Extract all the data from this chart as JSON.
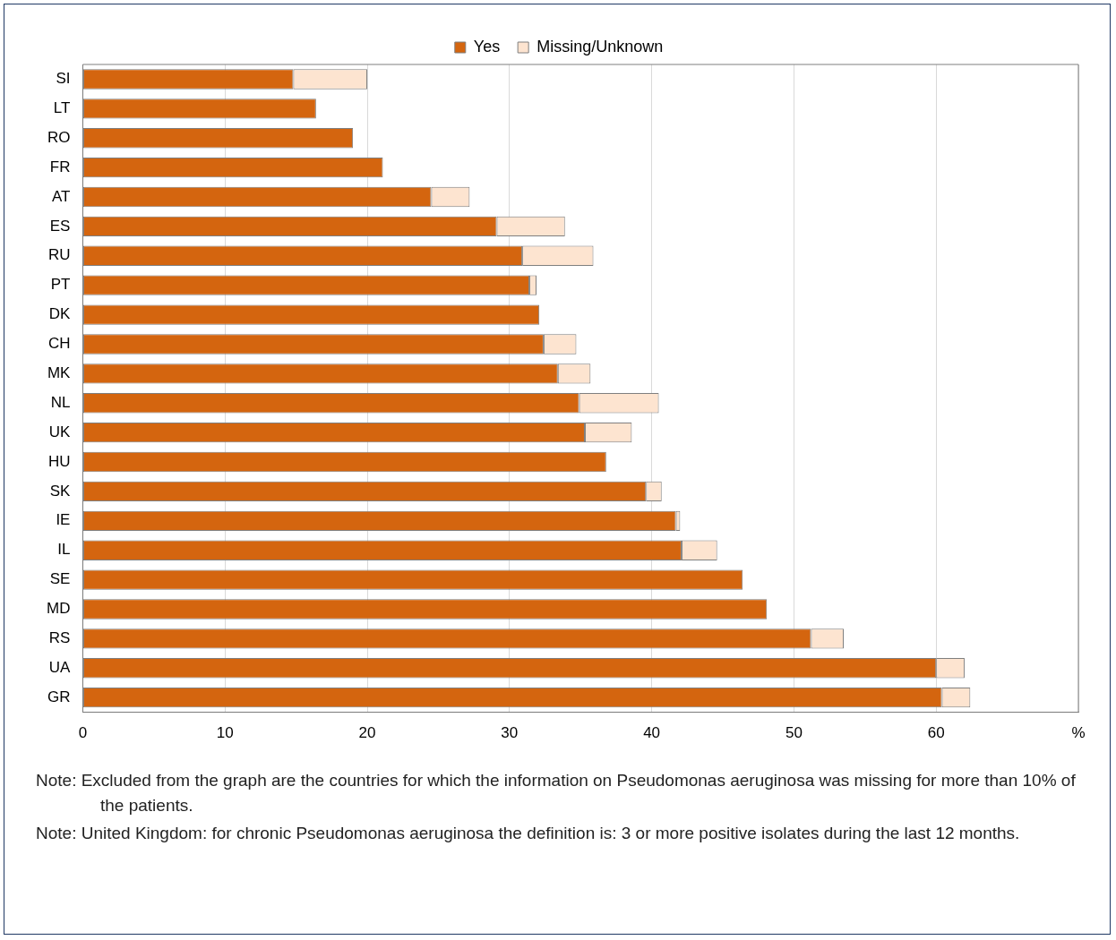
{
  "chart_data": {
    "type": "bar",
    "orientation": "horizontal",
    "stacked": true,
    "categories": [
      "SI",
      "LT",
      "RO",
      "FR",
      "AT",
      "ES",
      "RU",
      "PT",
      "DK",
      "CH",
      "MK",
      "NL",
      "UK",
      "HU",
      "SK",
      "IE",
      "IL",
      "SE",
      "MD",
      "RS",
      "UA",
      "GR"
    ],
    "series": [
      {
        "name": "Yes",
        "color": "#d4650f",
        "values": [
          14.8,
          16.4,
          19.0,
          21.1,
          24.5,
          29.1,
          30.9,
          31.4,
          32.1,
          32.4,
          33.4,
          34.9,
          35.3,
          36.8,
          39.6,
          41.7,
          42.1,
          46.4,
          48.1,
          51.2,
          60.0,
          60.4
        ]
      },
      {
        "name": "Missing/Unknown",
        "color": "#fde4d0",
        "values": [
          5.2,
          null,
          null,
          null,
          2.7,
          4.8,
          5.0,
          0.5,
          null,
          2.3,
          2.3,
          5.6,
          3.3,
          null,
          1.1,
          0.3,
          2.5,
          null,
          null,
          2.3,
          2.0,
          2.0
        ]
      }
    ],
    "xlim": [
      0,
      70
    ],
    "xticks": [
      0,
      10,
      20,
      30,
      40,
      50,
      60,
      {
        "value": 70,
        "label": "%"
      }
    ],
    "grid": "x",
    "legend": "top",
    "annotations": [
      "Note: Excluded from the graph are the countries for which the information on Pseudomonas aeruginosa was missing for more than 10% of the patients.",
      "Note: United Kingdom: for chronic Pseudomonas aeruginosa the definition is: 3 or more positive isolates during the last 12 months."
    ]
  }
}
